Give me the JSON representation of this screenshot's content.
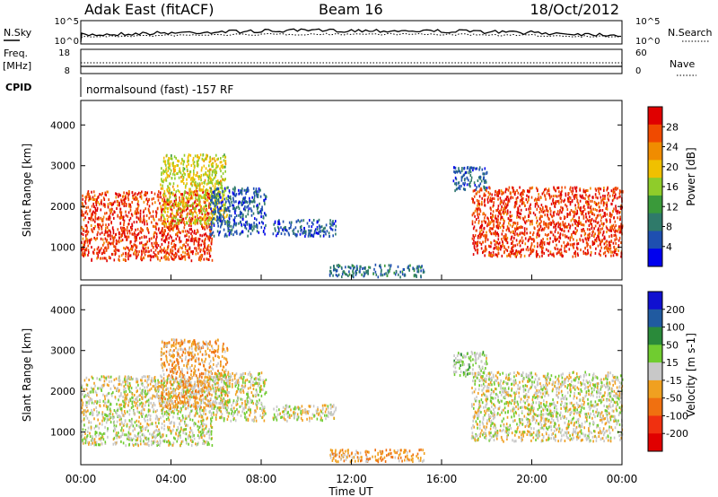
{
  "header": {
    "radar": "Adak East (fitACF)",
    "beam": "Beam 16",
    "date": "18/Oct/2012"
  },
  "params": {
    "nsky_label": "N.Sky",
    "nsearch_label": "N.Search",
    "freq_label_line1": "Freq.",
    "freq_label_line2": "[MHz]",
    "nave_label": "Nave",
    "cpid_label": "CPID",
    "cpid_value": "normalsound (fast) -157 RF",
    "noise_ticks_left": [
      "10^5",
      "10^0"
    ],
    "noise_ticks_right": [
      "10^5",
      "10^0"
    ],
    "freq_ticks_left": [
      "18",
      "8"
    ],
    "nave_ticks_right": [
      "60",
      "0"
    ]
  },
  "colors": {
    "power_scale": [
      "#0000ee",
      "#1e4fb0",
      "#2f7a6a",
      "#3a9a3a",
      "#8fcc2a",
      "#f0c000",
      "#f08c00",
      "#f04a00",
      "#e00000"
    ],
    "velocity_scale": [
      "#1010d0",
      "#205aa0",
      "#2a8a3a",
      "#70cc30",
      "#c8c8c8",
      "#f0a020",
      "#f07010",
      "#f03010",
      "#e00000"
    ]
  },
  "chart_data": [
    {
      "type": "heatmap",
      "panel": "power",
      "ylabel": "Slant Range [km]",
      "y_ticks": [
        1000,
        2000,
        3000,
        4000
      ],
      "ylim": [
        200,
        4600
      ],
      "xlim_hours": [
        0,
        24
      ],
      "colorbar": {
        "label": "Power [dB]",
        "ticks": [
          "4",
          "8",
          "12",
          "16",
          "20",
          "24",
          "28"
        ],
        "range": [
          0,
          32
        ]
      },
      "regions": [
        {
          "t_start": 0.0,
          "t_end": 5.8,
          "r_low": 700,
          "r_high": 2400,
          "level": 28
        },
        {
          "t_start": 3.5,
          "t_end": 6.5,
          "r_low": 1600,
          "r_high": 3300,
          "level": 18
        },
        {
          "t_start": 5.7,
          "t_end": 8.2,
          "r_low": 1300,
          "r_high": 2500,
          "level": 6
        },
        {
          "t_start": 8.5,
          "t_end": 11.3,
          "r_low": 1300,
          "r_high": 1700,
          "level": 6
        },
        {
          "t_start": 11.0,
          "t_end": 15.2,
          "r_low": 300,
          "r_high": 600,
          "level": 8
        },
        {
          "t_start": 16.5,
          "t_end": 18.0,
          "r_low": 2400,
          "r_high": 3000,
          "level": 6
        },
        {
          "t_start": 17.3,
          "t_end": 24.0,
          "r_low": 800,
          "r_high": 2500,
          "level": 28
        }
      ]
    },
    {
      "type": "heatmap",
      "panel": "velocity",
      "ylabel": "Slant Range [km]",
      "y_ticks": [
        1000,
        2000,
        3000,
        4000
      ],
      "ylim": [
        200,
        4600
      ],
      "xlim_hours": [
        0,
        24
      ],
      "xlabel": "Time UT",
      "x_ticks": [
        "00:00",
        "04:00",
        "08:00",
        "12:00",
        "16:00",
        "20:00",
        "00:00"
      ],
      "colorbar": {
        "label": "Velocity [m s-1]",
        "ticks": [
          "200",
          "100",
          "50",
          "15",
          "-15",
          "-50",
          "-100",
          "-200"
        ],
        "range": [
          -250,
          250
        ]
      },
      "regions": [
        {
          "t_start": 0.0,
          "t_end": 5.8,
          "r_low": 700,
          "r_high": 2400,
          "level": 0
        },
        {
          "t_start": 3.5,
          "t_end": 6.5,
          "r_low": 1600,
          "r_high": 3300,
          "level": -60
        },
        {
          "t_start": 5.7,
          "t_end": 8.2,
          "r_low": 1300,
          "r_high": 2500,
          "level": 0
        },
        {
          "t_start": 8.5,
          "t_end": 11.3,
          "r_low": 1300,
          "r_high": 1700,
          "level": 0
        },
        {
          "t_start": 11.0,
          "t_end": 15.2,
          "r_low": 300,
          "r_high": 600,
          "level": -60
        },
        {
          "t_start": 16.5,
          "t_end": 18.0,
          "r_low": 2400,
          "r_high": 3000,
          "level": 30
        },
        {
          "t_start": 17.3,
          "t_end": 24.0,
          "r_low": 800,
          "r_high": 2500,
          "level": 0
        }
      ]
    }
  ]
}
